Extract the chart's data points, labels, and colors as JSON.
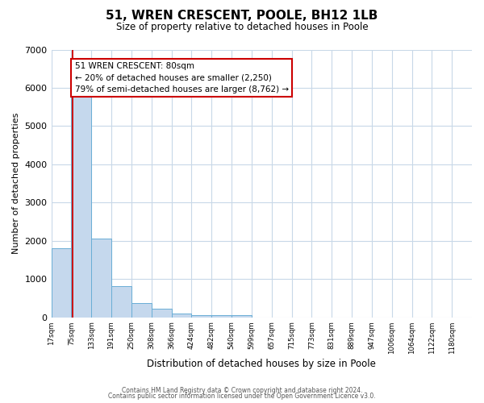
{
  "title": "51, WREN CRESCENT, POOLE, BH12 1LB",
  "subtitle": "Size of property relative to detached houses in Poole",
  "xlabel": "Distribution of detached houses by size in Poole",
  "ylabel": "Number of detached properties",
  "bar_left_edges": [
    17,
    75,
    133,
    191,
    250,
    308,
    366,
    424,
    482,
    540,
    599,
    657,
    715,
    773,
    831,
    889,
    947,
    1006,
    1064,
    1122
  ],
  "bar_widths": [
    58,
    58,
    58,
    59,
    58,
    58,
    58,
    58,
    58,
    59,
    58,
    58,
    58,
    58,
    58,
    58,
    59,
    58,
    58,
    58
  ],
  "bar_heights": [
    1800,
    5800,
    2050,
    820,
    375,
    220,
    100,
    60,
    50,
    50,
    0,
    0,
    0,
    0,
    0,
    0,
    0,
    0,
    0,
    0
  ],
  "bar_color": "#c5d8ed",
  "bar_edge_color": "#6aaed6",
  "tick_labels": [
    "17sqm",
    "75sqm",
    "133sqm",
    "191sqm",
    "250sqm",
    "308sqm",
    "366sqm",
    "424sqm",
    "482sqm",
    "540sqm",
    "599sqm",
    "657sqm",
    "715sqm",
    "773sqm",
    "831sqm",
    "889sqm",
    "947sqm",
    "1006sqm",
    "1064sqm",
    "1122sqm",
    "1180sqm"
  ],
  "ylim": [
    0,
    7000
  ],
  "yticks": [
    0,
    1000,
    2000,
    3000,
    4000,
    5000,
    6000,
    7000
  ],
  "property_line_x": 80,
  "property_line_color": "#cc0000",
  "annotation_title": "51 WREN CRESCENT: 80sqm",
  "annotation_line1": "← 20% of detached houses are smaller (2,250)",
  "annotation_line2": "79% of semi-detached houses are larger (8,762) →",
  "annotation_box_color": "#cc0000",
  "background_color": "#ffffff",
  "grid_color": "#c8d8e8",
  "footer_line1": "Contains HM Land Registry data © Crown copyright and database right 2024.",
  "footer_line2": "Contains public sector information licensed under the Open Government Licence v3.0."
}
